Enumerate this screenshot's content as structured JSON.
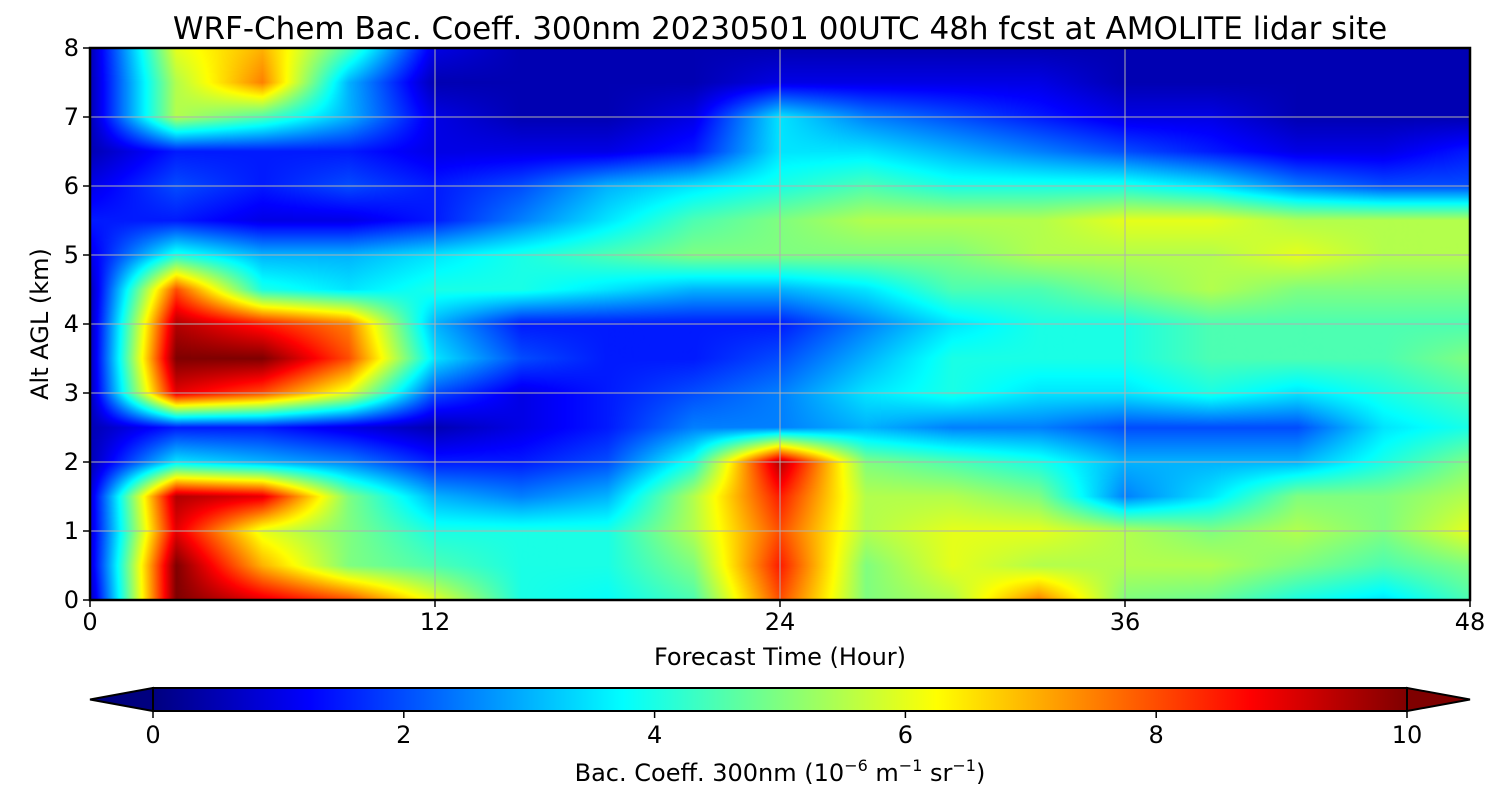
{
  "chart_data": {
    "type": "heatmap",
    "title": "WRF-Chem Bac. Coeff. 300nm  20230501 00UTC 48h fcst at AMOLITE lidar site",
    "xlabel": "Forecast Time (Hour)",
    "ylabel": "Alt AGL (km)",
    "xlim": [
      0,
      48
    ],
    "ylim": [
      0,
      8
    ],
    "x_ticks": [
      "0",
      "12",
      "24",
      "36",
      "48"
    ],
    "y_ticks": [
      "0",
      "1",
      "2",
      "3",
      "4",
      "5",
      "6",
      "7",
      "8"
    ],
    "grid": true,
    "colormap": "jet",
    "colorbar": {
      "label_main": "Bac. Coeff. 300nm  (10",
      "label_exp1": "−6",
      "label_mid1": " m",
      "label_exp2": "−1",
      "label_mid2": " sr",
      "label_exp3": "−1",
      "label_end": ")",
      "range": [
        0,
        10
      ],
      "ticks": [
        "0",
        "2",
        "4",
        "6",
        "8",
        "10"
      ],
      "extend": "both",
      "location": "bottom"
    },
    "x": [
      0,
      3,
      6,
      9,
      12,
      15,
      18,
      21,
      24,
      27,
      30,
      33,
      36,
      39,
      42,
      45,
      48
    ],
    "y": [
      0,
      0.5,
      1,
      1.5,
      2,
      2.5,
      3,
      3.5,
      4,
      4.5,
      5,
      5.5,
      6,
      6.5,
      7,
      7.5,
      8
    ],
    "z": [
      [
        0.5,
        10,
        9,
        8,
        6,
        4,
        3.8,
        4.5,
        8,
        5,
        5.5,
        7.5,
        5,
        4.8,
        4,
        3.5,
        4.5
      ],
      [
        0.8,
        10,
        7,
        5,
        4.5,
        4,
        4,
        5,
        8.5,
        5,
        6,
        5.5,
        5.5,
        5.5,
        5,
        4.5,
        5
      ],
      [
        0.8,
        9,
        6,
        5,
        4,
        4,
        4,
        5.5,
        8,
        5.5,
        6,
        6,
        5.5,
        5,
        5.5,
        5,
        6
      ],
      [
        0.8,
        9.5,
        9,
        5,
        3,
        2.5,
        3,
        5.5,
        8.5,
        5.5,
        5.5,
        5,
        2.5,
        3.5,
        5,
        5,
        5.5
      ],
      [
        0.5,
        3.5,
        3,
        2.5,
        1.5,
        1.5,
        2,
        4,
        9.5,
        5,
        4.5,
        4,
        3,
        3,
        3,
        4,
        5
      ],
      [
        0.5,
        1.5,
        1.5,
        1,
        0.5,
        1,
        1.5,
        2.5,
        2.5,
        3,
        2.5,
        2.5,
        2,
        2,
        2,
        3.5,
        4
      ],
      [
        0.5,
        9,
        8,
        6,
        2,
        1,
        1.5,
        2,
        2.5,
        3.5,
        4,
        3.5,
        3.5,
        4,
        3.5,
        4,
        4.5
      ],
      [
        0.5,
        10,
        10,
        8,
        3.5,
        2,
        1.5,
        1.5,
        2,
        3,
        4,
        4,
        4,
        4.5,
        4.5,
        4.5,
        5
      ],
      [
        0.5,
        9.5,
        8.5,
        7.5,
        3,
        1.5,
        1.5,
        1.5,
        1.5,
        2.5,
        3.5,
        4,
        4,
        4.5,
        4.5,
        4.5,
        4.5
      ],
      [
        0.5,
        8,
        4,
        3.5,
        4,
        4,
        3.5,
        3,
        3,
        3.5,
        4.5,
        4.5,
        5,
        5.5,
        5,
        5,
        5
      ],
      [
        1,
        4,
        3,
        3,
        3.5,
        4,
        4.5,
        5,
        5,
        5,
        5,
        5.5,
        5.5,
        5.5,
        6,
        5.5,
        5.5
      ],
      [
        1.5,
        1.5,
        1,
        1,
        1.5,
        2.5,
        3.5,
        4.5,
        5,
        5.5,
        5.5,
        5.5,
        6,
        6,
        5.5,
        5.5,
        5.5
      ],
      [
        1,
        2,
        1.5,
        2,
        1.5,
        2,
        3,
        3.5,
        4,
        4.5,
        4,
        4,
        4,
        3.5,
        2.5,
        2,
        2
      ],
      [
        0.5,
        1.5,
        1.5,
        1.5,
        1,
        1,
        1,
        1.5,
        3.5,
        3.5,
        3,
        2.5,
        2,
        1.5,
        1,
        1,
        1.5
      ],
      [
        0.5,
        5.5,
        4.5,
        3,
        1,
        0.5,
        0.5,
        1,
        3.5,
        2.5,
        2,
        1.5,
        1,
        1,
        0.5,
        0.5,
        0.5
      ],
      [
        0.5,
        5.5,
        7.5,
        3,
        0.5,
        0.5,
        0.5,
        0.5,
        1,
        1,
        1,
        1,
        0.5,
        0.5,
        0.5,
        0.5,
        0.5
      ],
      [
        0.5,
        6,
        7,
        4.5,
        1,
        0.5,
        0.5,
        0.5,
        0.5,
        0.5,
        0.5,
        0.5,
        0.5,
        0.5,
        0.5,
        0.5,
        0.5
      ]
    ]
  }
}
